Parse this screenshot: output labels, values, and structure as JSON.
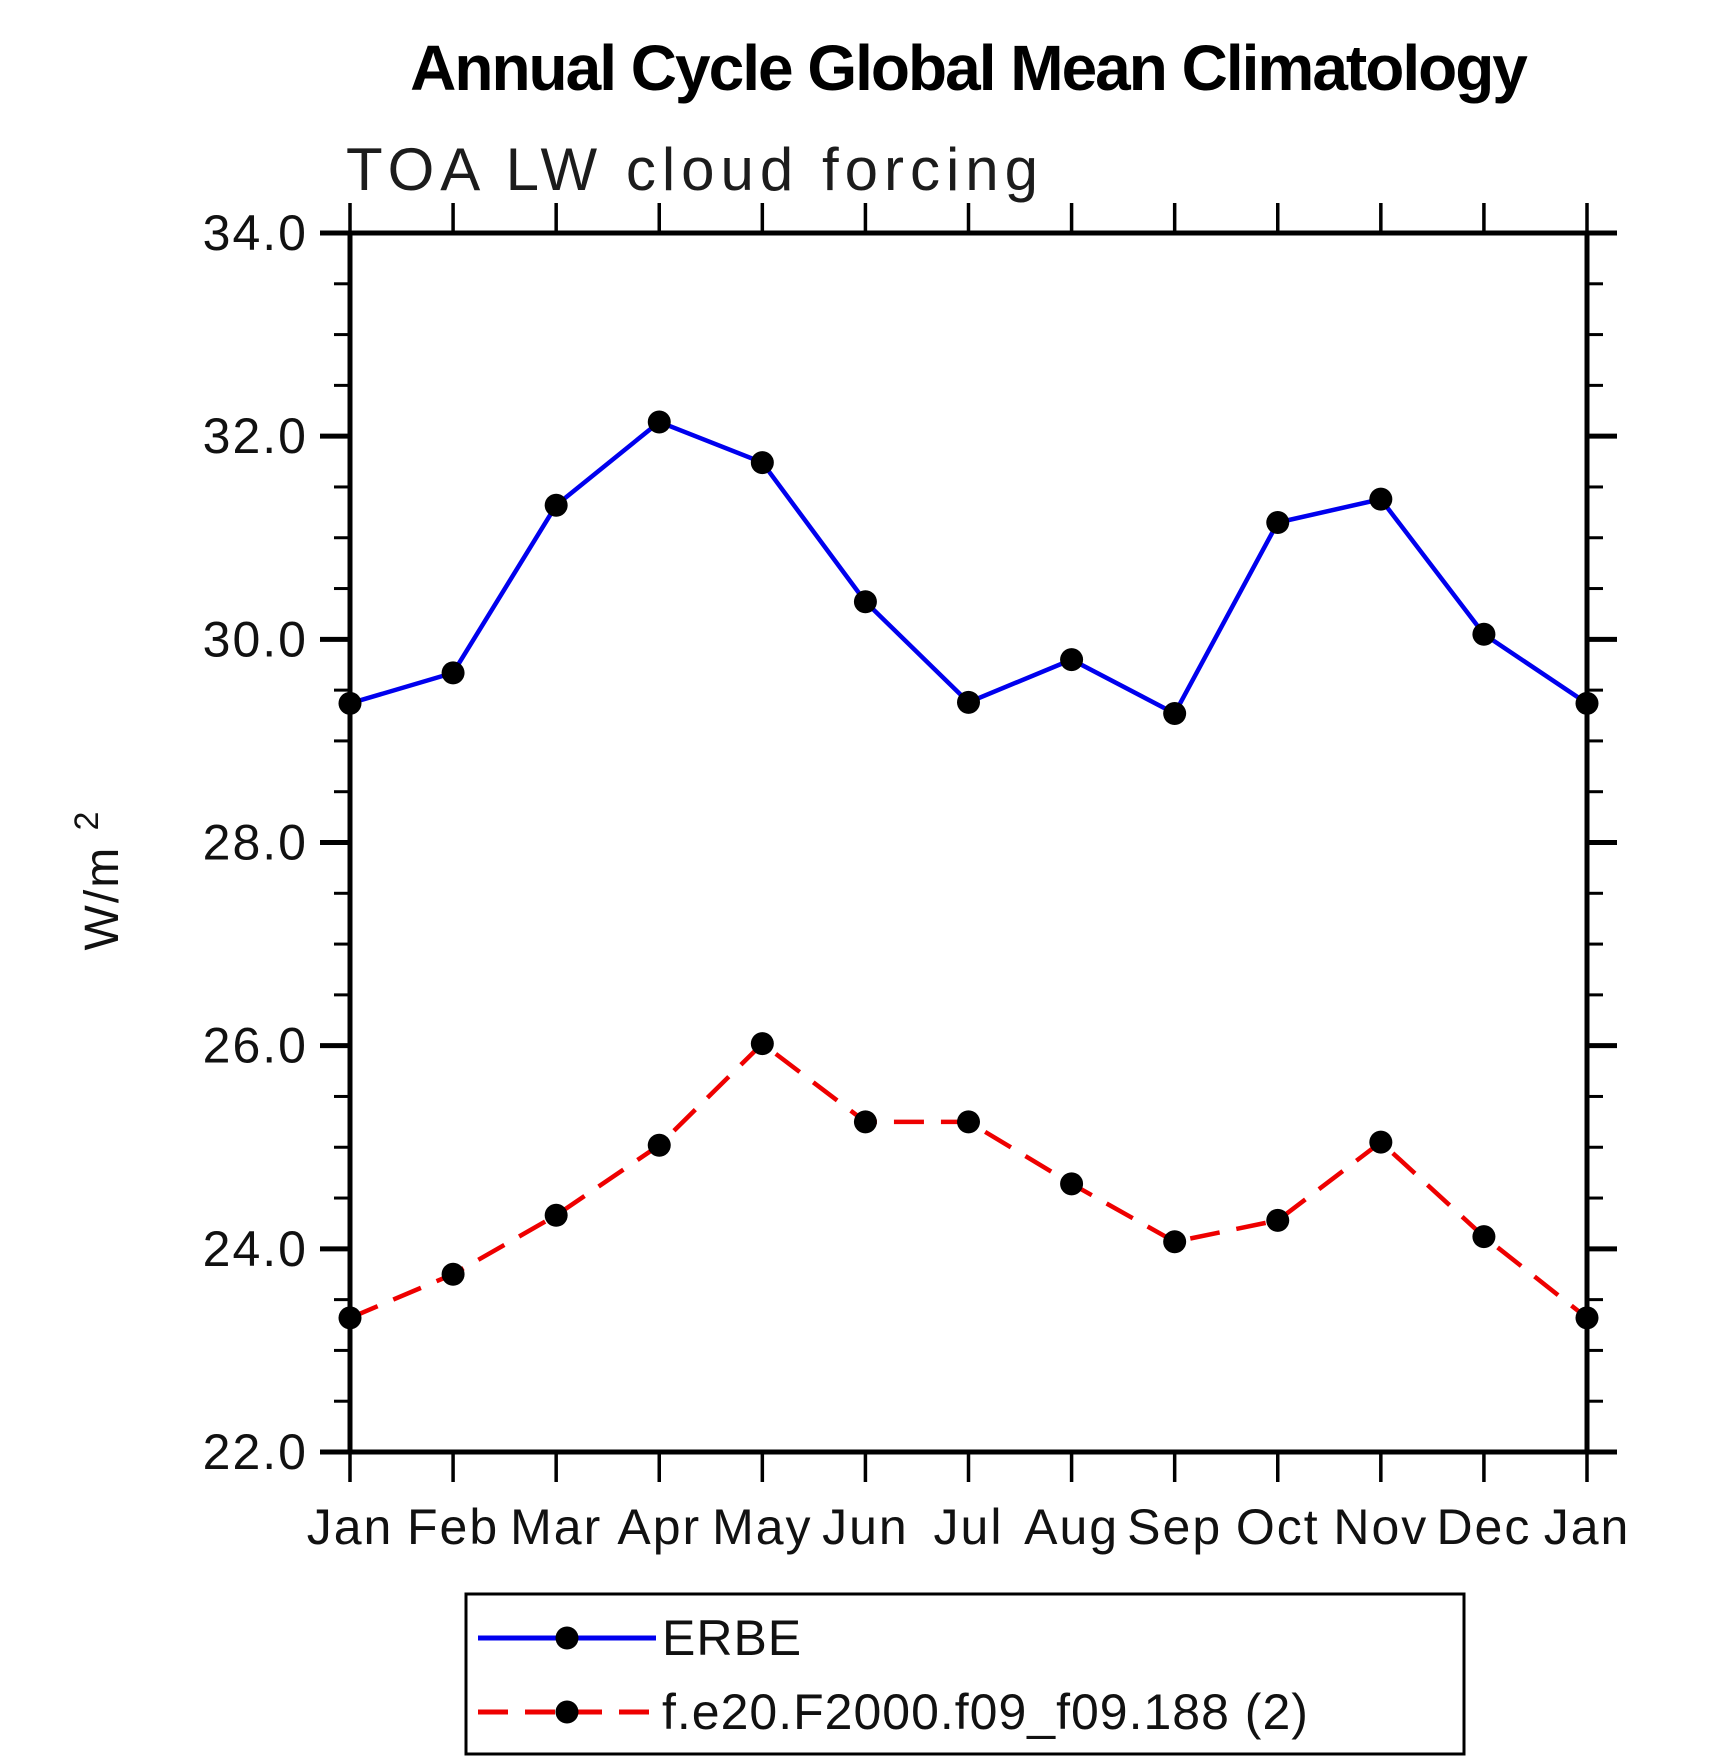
{
  "chart_data": {
    "type": "line",
    "title": "Annual Cycle Global Mean Climatology",
    "subtitle": "TOA LW cloud forcing",
    "ylabel_base": "W/m",
    "ylabel_exp": "2",
    "categories": [
      "Jan",
      "Feb",
      "Mar",
      "Apr",
      "May",
      "Jun",
      "Jul",
      "Aug",
      "Sep",
      "Oct",
      "Nov",
      "Dec",
      "Jan"
    ],
    "ylim": [
      22.0,
      34.0
    ],
    "ytick_major": 2.0,
    "ytick_minor": 0.5,
    "ytick_labels": [
      "22.0",
      "24.0",
      "26.0",
      "28.0",
      "30.0",
      "32.0",
      "34.0"
    ],
    "grid": false,
    "legend_position": "bottom-center-box",
    "frame_color": "#000000",
    "background_color": "#ffffff",
    "marker": "filled-circle",
    "marker_color": "#000000",
    "series": [
      {
        "name": "ERBE",
        "color": "#0000ee",
        "line_style": "solid",
        "values": [
          29.37,
          29.67,
          31.32,
          32.14,
          31.74,
          30.37,
          29.38,
          29.8,
          29.27,
          31.15,
          31.38,
          30.05,
          29.37
        ]
      },
      {
        "name": "f.e20.F2000.f09_f09.188 (2)",
        "color": "#ee0000",
        "line_style": "dashed",
        "values": [
          23.32,
          23.75,
          24.33,
          25.02,
          26.02,
          25.25,
          25.25,
          24.64,
          24.07,
          24.28,
          25.05,
          24.12,
          23.32
        ]
      }
    ]
  }
}
